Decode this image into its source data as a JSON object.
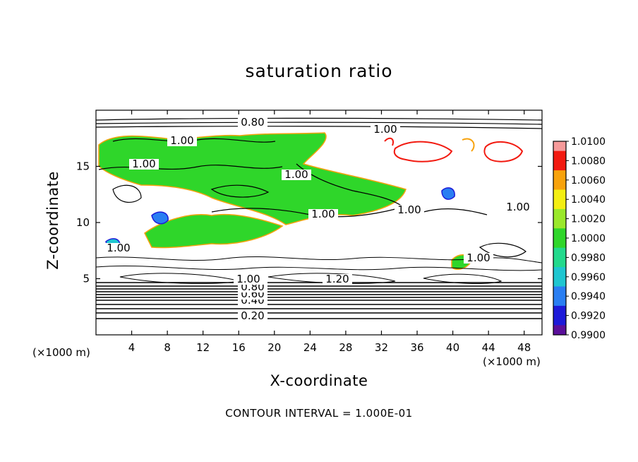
{
  "chart_data": {
    "type": "heatmap",
    "title": "saturation ratio",
    "xlabel": "X-coordinate",
    "ylabel": "Z-coordinate",
    "x_unit": "(×1000 m)",
    "x_unit_right": "(×1000 m)",
    "xlim": [
      0,
      50
    ],
    "ylim": [
      0,
      20
    ],
    "x_ticks": [
      4,
      8,
      12,
      16,
      20,
      24,
      28,
      32,
      36,
      40,
      44,
      48
    ],
    "y_ticks": [
      5,
      10,
      15
    ],
    "colorbar": {
      "levels": [
        "0.9900",
        "0.9920",
        "0.9940",
        "0.9960",
        "0.9980",
        "1.0000",
        "1.0020",
        "1.0040",
        "1.0060",
        "1.0080",
        "1.0100"
      ],
      "colors": [
        "#5a0f9a",
        "#1d1ad8",
        "#2a7ef2",
        "#1fc6d0",
        "#22d98c",
        "#2fd62a",
        "#9ae82a",
        "#f4ee12",
        "#f7a20c",
        "#f21a10",
        "#f69a9a"
      ]
    },
    "contour_labels": [
      "0.20",
      "0.40",
      "0.60",
      "0.80",
      "1.00",
      "1.20",
      "0.80",
      "1.00",
      "1.00",
      "1.00",
      "1.00",
      "1.00",
      "1.00",
      "1.00",
      "1.00",
      "1.00"
    ],
    "contour_interval_text": "CONTOUR INTERVAL = 1.000E-01"
  }
}
